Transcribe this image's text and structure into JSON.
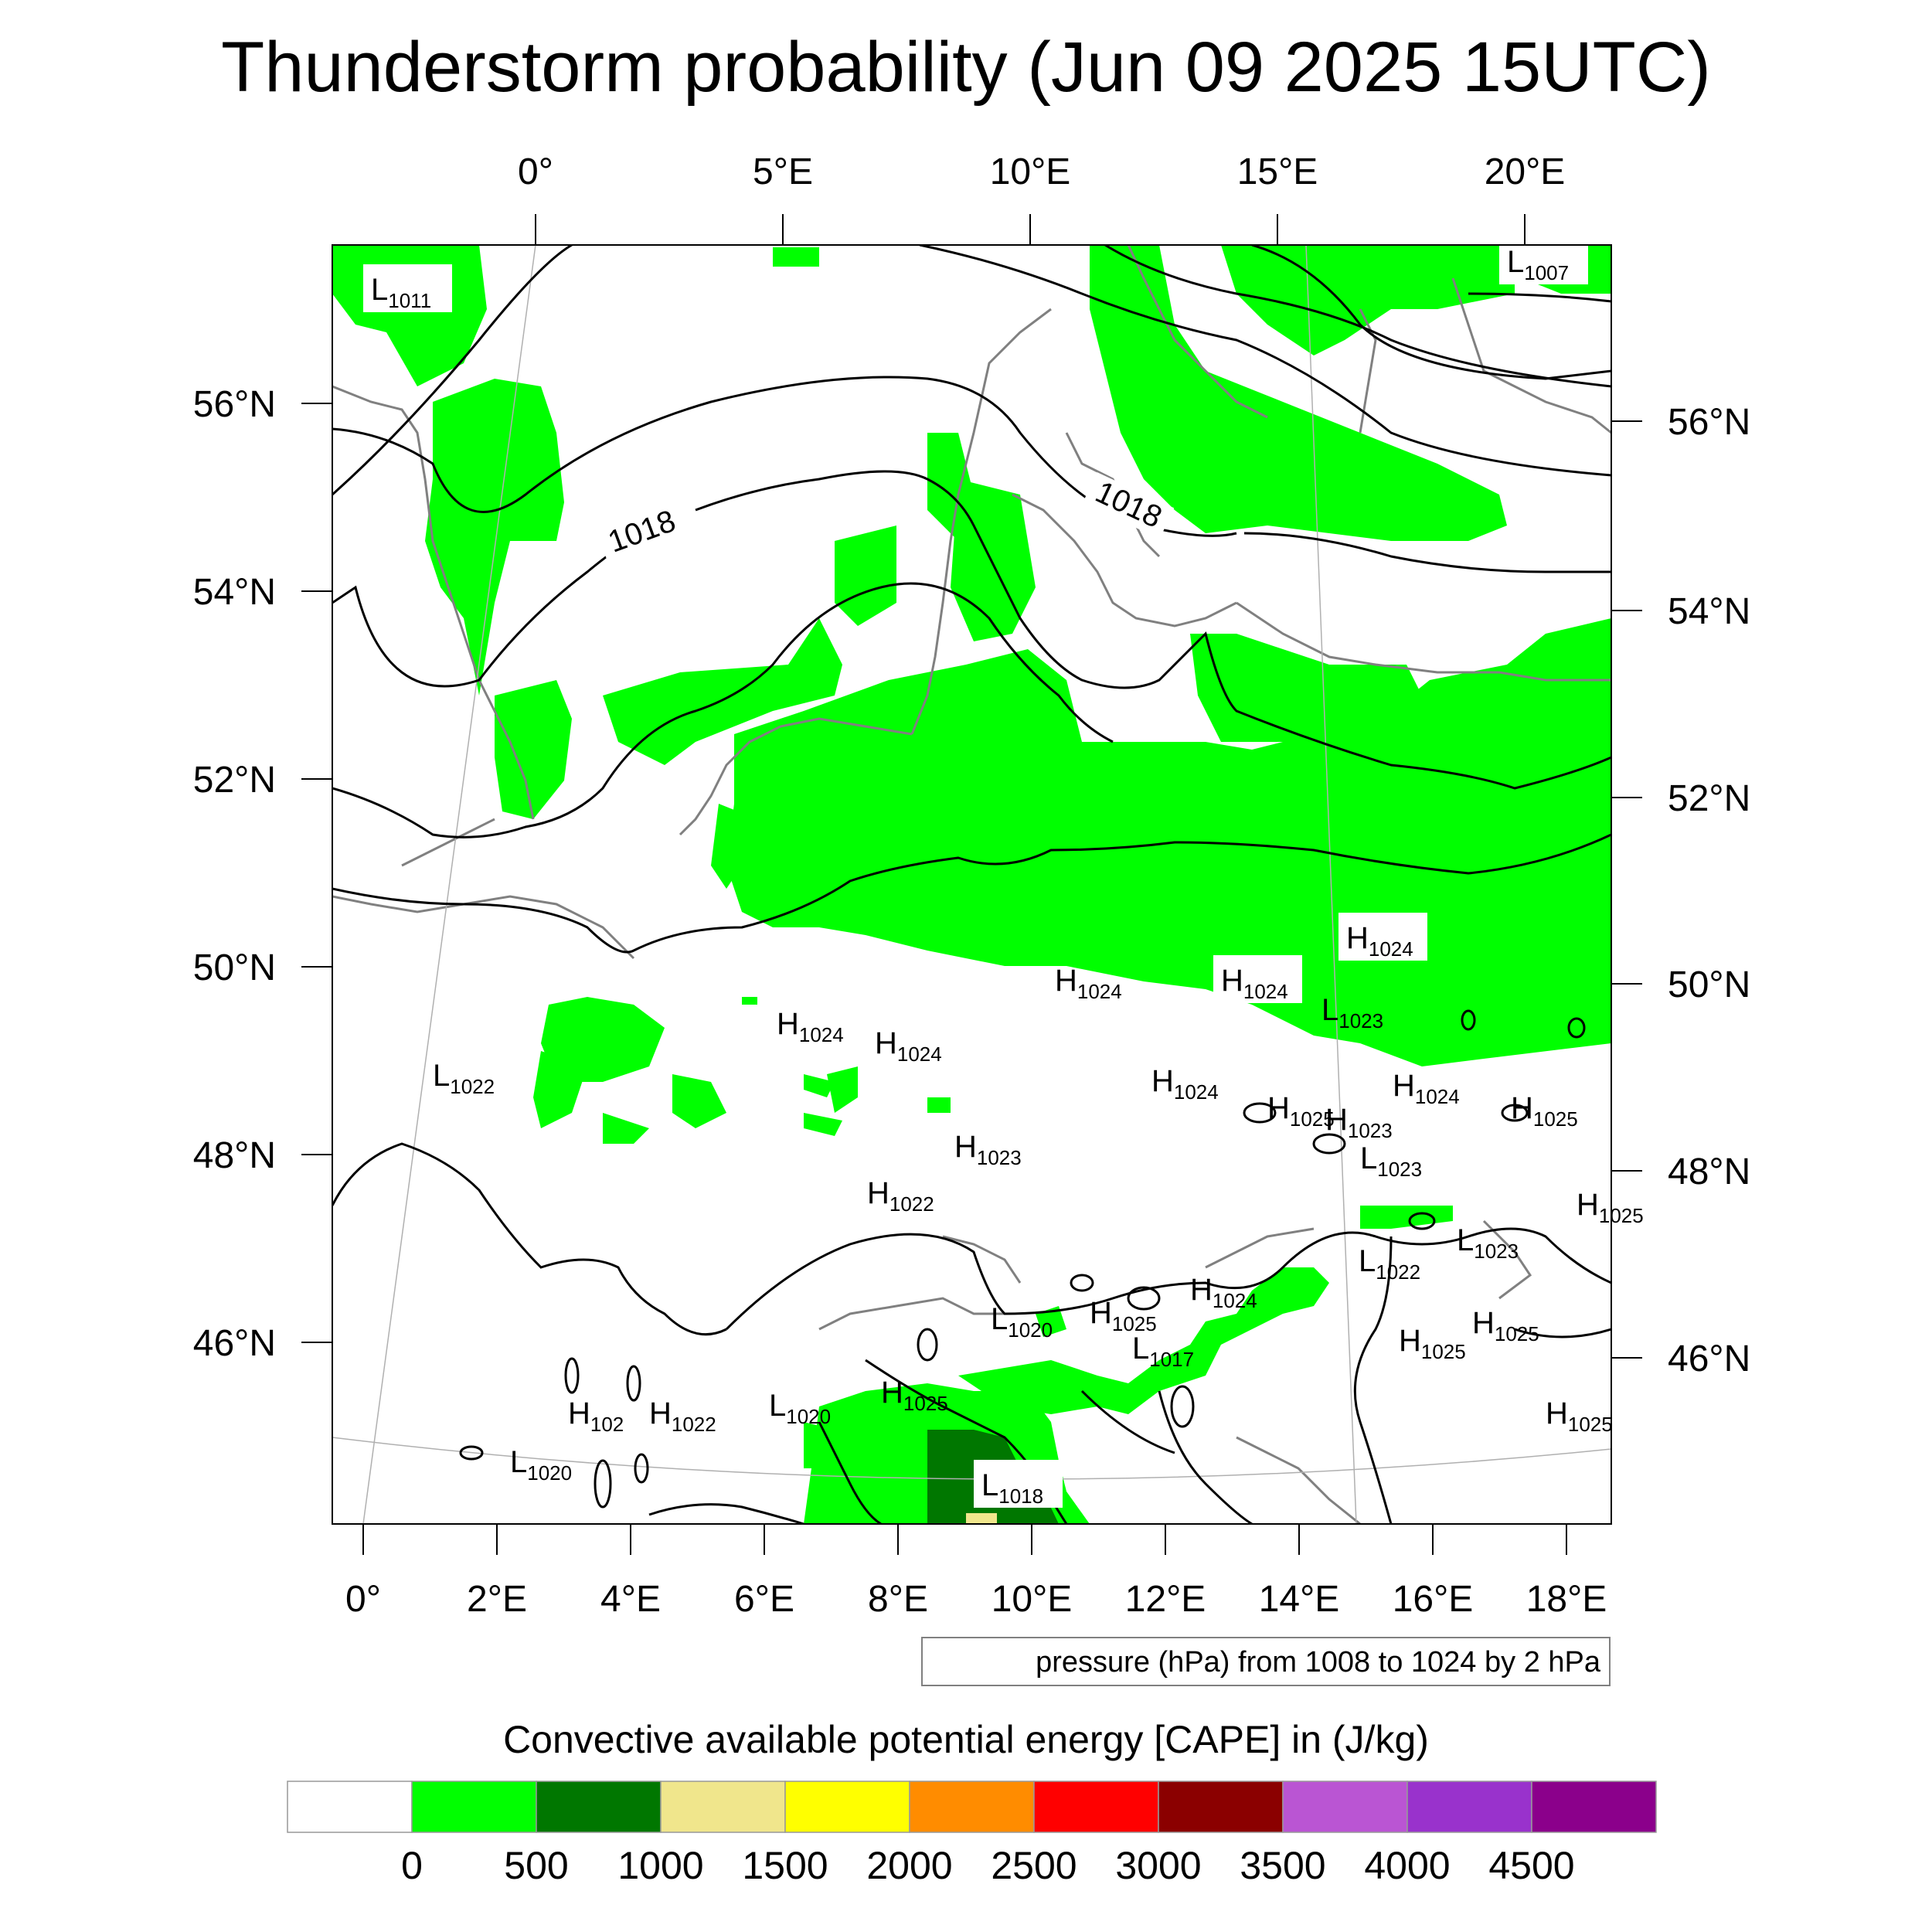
{
  "title": "Thunderstorm probability (Jun 09 2025 15UTC)",
  "map": {
    "top_lon_labels": [
      "0°",
      "5°E",
      "10°E",
      "15°E",
      "20°E"
    ],
    "bottom_lon_labels": [
      "0°",
      "2°E",
      "4°E",
      "6°E",
      "8°E",
      "10°E",
      "12°E",
      "14°E",
      "16°E",
      "18°E"
    ],
    "left_lat_labels": [
      "56°N",
      "54°N",
      "52°N",
      "50°N",
      "48°N",
      "46°N"
    ],
    "right_lat_labels": [
      "56°N",
      "54°N",
      "52°N",
      "50°N",
      "48°N",
      "46°N"
    ],
    "isobar_labels": [
      "1018",
      "1018"
    ],
    "pressure_centers": [
      {
        "type": "L",
        "value": "1011"
      },
      {
        "type": "L",
        "value": "1007"
      },
      {
        "type": "H",
        "value": "1024"
      },
      {
        "type": "H",
        "value": "1024"
      },
      {
        "type": "H",
        "value": "1024"
      },
      {
        "type": "L",
        "value": "1023"
      },
      {
        "type": "H",
        "value": "1024"
      },
      {
        "type": "H",
        "value": "1024"
      },
      {
        "type": "L",
        "value": "1022"
      },
      {
        "type": "H",
        "value": "1024"
      },
      {
        "type": "H",
        "value": "1024"
      },
      {
        "type": "H",
        "value": "1025"
      },
      {
        "type": "H",
        "value": "1023"
      },
      {
        "type": "H",
        "value": "1025"
      },
      {
        "type": "L",
        "value": "1023"
      },
      {
        "type": "H",
        "value": "1023"
      },
      {
        "type": "H",
        "value": "1022"
      },
      {
        "type": "H",
        "value": "1025"
      },
      {
        "type": "L",
        "value": "1023"
      },
      {
        "type": "L",
        "value": "1022"
      },
      {
        "type": "H",
        "value": "1024"
      },
      {
        "type": "L",
        "value": "1020"
      },
      {
        "type": "H",
        "value": "1025"
      },
      {
        "type": "L",
        "value": "1017"
      },
      {
        "type": "H",
        "value": "1025"
      },
      {
        "type": "H",
        "value": "1025"
      },
      {
        "type": "H",
        "value": "102"
      },
      {
        "type": "H",
        "value": "1022"
      },
      {
        "type": "L",
        "value": "1020"
      },
      {
        "type": "H",
        "value": "1025"
      },
      {
        "type": "H",
        "value": "1025"
      },
      {
        "type": "L",
        "value": "1020"
      },
      {
        "type": "L",
        "value": "1018"
      }
    ],
    "contour_info": "pressure (hPa) from 1008 to 1024 by 2 hPa",
    "colors": {
      "cape_500": "#00ff00",
      "cape_1000": "#007700",
      "isobar": "#000000",
      "coastline": "#808080"
    }
  },
  "legend": {
    "title": "Convective available potential energy [CAPE] in (J/kg)",
    "colors": [
      "#ffffff",
      "#00ff00",
      "#007700",
      "#f0e68c",
      "#ffff00",
      "#ff8c00",
      "#ff0000",
      "#8b0000",
      "#ba55d3",
      "#9932cc",
      "#8b008b"
    ],
    "labels": [
      "0",
      "500",
      "1000",
      "1500",
      "2000",
      "2500",
      "3000",
      "3500",
      "4000",
      "4500"
    ]
  }
}
